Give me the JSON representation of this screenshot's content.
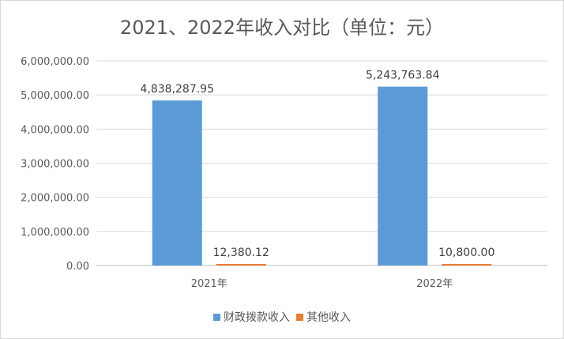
{
  "chart_data": {
    "type": "bar",
    "title": "2021、2022年收入对比（单位：元）",
    "categories": [
      "2021年",
      "2022年"
    ],
    "series": [
      {
        "name": "财政拨款收入",
        "color": "#5b9bd5",
        "values": [
          4838287.95,
          5243763.84
        ],
        "labels": [
          "4,838,287.95",
          "5,243,763.84"
        ]
      },
      {
        "name": "其他收入",
        "color": "#ed7d31",
        "values": [
          12380.12,
          10800.0
        ],
        "labels": [
          "12,380.12",
          "10,800.00"
        ]
      }
    ],
    "ylim": [
      0,
      6000000
    ],
    "yticks": [
      0,
      1000000,
      2000000,
      3000000,
      4000000,
      5000000,
      6000000
    ],
    "ytick_labels": [
      "0.00",
      "1,000,000.00",
      "2,000,000.00",
      "3,000,000.00",
      "4,000,000.00",
      "5,000,000.00",
      "6,000,000.00"
    ],
    "xlabel": "",
    "ylabel": "",
    "grid": true,
    "legend_position": "bottom"
  }
}
